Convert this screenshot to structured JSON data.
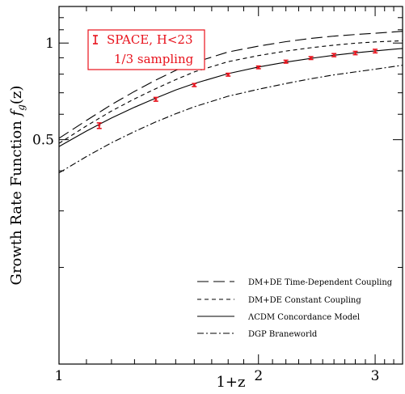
{
  "chart_data": {
    "type": "line",
    "xlabel": "1+z",
    "ylabel_main": "Growth Rate Function ",
    "ylabel_symbol": "f",
    "ylabel_sub": "g",
    "ylabel_arg": "(z)",
    "x_scale": "log",
    "xlim": [
      1,
      3.3
    ],
    "ylim": [
      0.1,
      1.3
    ],
    "x_ticks": [
      {
        "value": 1,
        "label": "1"
      },
      {
        "value": 2,
        "label": "2"
      },
      {
        "value": 3,
        "label": "3"
      }
    ],
    "y_ticks": [
      {
        "value": 0.5,
        "label": "0.5"
      },
      {
        "value": 1,
        "label": "1"
      }
    ],
    "inset": {
      "line1": "SPACE, H<23",
      "line2": "1/3 sampling",
      "color": "#e8121c"
    },
    "series": [
      {
        "name": "DM+DE Time-Dependent Coupling",
        "style": "long-dash",
        "x": [
          1.0,
          1.1,
          1.2,
          1.3,
          1.4,
          1.5,
          1.6,
          1.8,
          2.0,
          2.2,
          2.4,
          2.6,
          2.8,
          3.0,
          3.2,
          3.3
        ],
        "y": [
          0.505,
          0.574,
          0.643,
          0.707,
          0.767,
          0.822,
          0.869,
          0.938,
          0.978,
          1.01,
          1.034,
          1.051,
          1.063,
          1.073,
          1.083,
          1.088
        ]
      },
      {
        "name": "DM+DE Constant Coupling",
        "style": "short-dash",
        "x": [
          1.0,
          1.1,
          1.2,
          1.3,
          1.4,
          1.5,
          1.6,
          1.8,
          2.0,
          2.2,
          2.4,
          2.6,
          2.8,
          3.0,
          3.2,
          3.3
        ],
        "y": [
          0.487,
          0.552,
          0.614,
          0.67,
          0.721,
          0.769,
          0.813,
          0.875,
          0.914,
          0.944,
          0.967,
          0.985,
          0.999,
          1.008,
          1.014,
          1.017
        ]
      },
      {
        "name": "ΛCDM Concordance Model",
        "style": "solid",
        "x": [
          1.0,
          1.1,
          1.2,
          1.3,
          1.4,
          1.5,
          1.6,
          1.8,
          2.0,
          2.2,
          2.4,
          2.6,
          2.8,
          3.0,
          3.2,
          3.3
        ],
        "y": [
          0.476,
          0.532,
          0.584,
          0.631,
          0.674,
          0.714,
          0.748,
          0.803,
          0.842,
          0.872,
          0.896,
          0.916,
          0.932,
          0.945,
          0.957,
          0.962
        ]
      },
      {
        "name": "DGP Braneworld",
        "style": "dash-dot",
        "x": [
          1.0,
          1.1,
          1.2,
          1.3,
          1.4,
          1.5,
          1.6,
          1.8,
          2.0,
          2.2,
          2.4,
          2.6,
          2.8,
          3.0,
          3.2,
          3.3
        ],
        "y": [
          0.394,
          0.443,
          0.489,
          0.53,
          0.568,
          0.602,
          0.633,
          0.683,
          0.718,
          0.748,
          0.774,
          0.796,
          0.813,
          0.829,
          0.845,
          0.853
        ]
      }
    ],
    "points": {
      "color": "#e8121c",
      "x": [
        1.15,
        1.4,
        1.6,
        1.8,
        2.0,
        2.2,
        2.4,
        2.6,
        2.8,
        3.0
      ],
      "y": [
        0.553,
        0.668,
        0.74,
        0.797,
        0.84,
        0.875,
        0.898,
        0.917,
        0.931,
        0.944
      ],
      "err": [
        0.011,
        0.009,
        0.008,
        0.008,
        0.008,
        0.009,
        0.009,
        0.01,
        0.011,
        0.012
      ]
    }
  }
}
